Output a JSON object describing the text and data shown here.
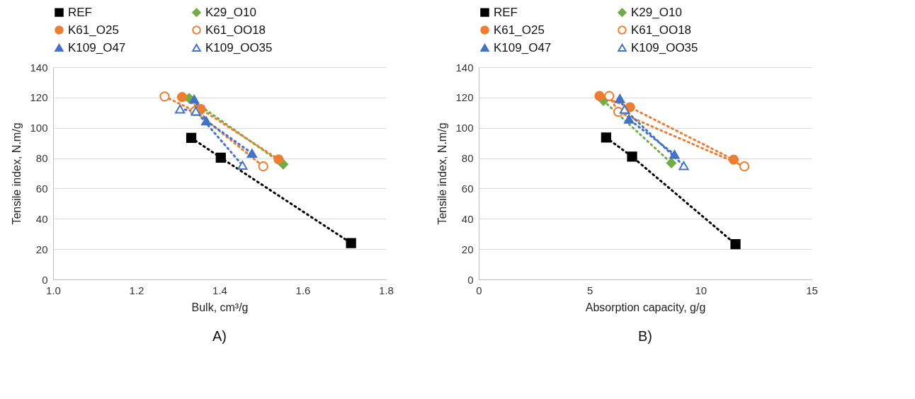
{
  "chart_data": [
    {
      "type": "line",
      "xlabel": "Bulk, cm³/g",
      "ylabel": "Tensile index, N.m/g",
      "xlim": [
        1.0,
        1.8
      ],
      "xticks": [
        {
          "value": 1.0,
          "label": "1.0"
        },
        1.2,
        1.4,
        1.6,
        {
          "value": 1.8,
          "label": "1.8"
        }
      ],
      "ylim": [
        0,
        140
      ],
      "yticks": [
        0,
        20,
        40,
        60,
        80,
        100,
        120,
        140
      ],
      "grid": "y",
      "legend": "top",
      "line_style": "dotted",
      "annotations": [
        "A)"
      ],
      "series": [
        {
          "name": "REF",
          "color": "#000000",
          "marker": "square",
          "x": [
            1.332,
            1.403,
            1.716
          ],
          "values": [
            93.4,
            80.3,
            24
          ]
        },
        {
          "name": "K29_O10",
          "color": "#70ad47",
          "marker": "diamond",
          "x": [
            1.327,
            1.553
          ],
          "values": [
            119.6,
            76
          ]
        },
        {
          "name": "K61_O25",
          "color": "#ed7d31",
          "marker": "circle",
          "x": [
            1.31,
            1.355,
            1.542
          ],
          "values": [
            120.3,
            112.4,
            79.2
          ]
        },
        {
          "name": "K61_OO18",
          "color": "#ed7d31",
          "marker": "circle",
          "x": [
            1.268,
            1.341,
            1.505
          ],
          "values": [
            120.7,
            111,
            74.6
          ]
        },
        {
          "name": "K109_O47",
          "color": "#4472c4",
          "marker": "triangle",
          "x": [
            1.339,
            1.368,
            1.478
          ],
          "values": [
            118.9,
            104.6,
            83.2
          ]
        },
        {
          "name": "K109_OO35",
          "color": "#4472c4",
          "marker": "triangle",
          "x": [
            1.305,
            1.343,
            1.455
          ],
          "values": [
            112.4,
            111,
            75.3
          ]
        }
      ]
    },
    {
      "type": "line",
      "xlabel": "Absorption capacity, g/g",
      "ylabel": "Tensile index, N.m/g",
      "xlim": [
        0,
        15
      ],
      "xticks": [
        0,
        5,
        10,
        15
      ],
      "ylim": [
        0,
        140
      ],
      "yticks": [
        0,
        20,
        40,
        60,
        80,
        100,
        120,
        140
      ],
      "grid": "y",
      "legend": "top",
      "line_style": "dotted",
      "annotations": [
        "B)"
      ],
      "series": [
        {
          "name": "REF",
          "color": "#000000",
          "marker": "square",
          "x": [
            5.74,
            6.91,
            11.57
          ],
          "values": [
            93.6,
            81,
            23.3
          ]
        },
        {
          "name": "K29_O10",
          "color": "#70ad47",
          "marker": "diamond",
          "x": [
            5.62,
            8.68
          ],
          "values": [
            117.9,
            76.8
          ]
        },
        {
          "name": "K61_O25",
          "color": "#ed7d31",
          "marker": "circle",
          "x": [
            5.44,
            6.82,
            11.49
          ],
          "values": [
            121,
            113.6,
            79
          ]
        },
        {
          "name": "K61_OO18",
          "color": "#ed7d31",
          "marker": "circle",
          "x": [
            5.88,
            6.29,
            11.97
          ],
          "values": [
            121,
            110.5,
            74.6
          ]
        },
        {
          "name": "K109_O47",
          "color": "#4472c4",
          "marker": "triangle",
          "x": [
            6.36,
            6.77,
            8.82
          ],
          "values": [
            119.3,
            105.7,
            82.5
          ]
        },
        {
          "name": "K109_OO35",
          "color": "#4472c4",
          "marker": "triangle",
          "x": [
            6.57,
            9.24
          ],
          "values": [
            112.2,
            75
          ]
        }
      ]
    }
  ]
}
